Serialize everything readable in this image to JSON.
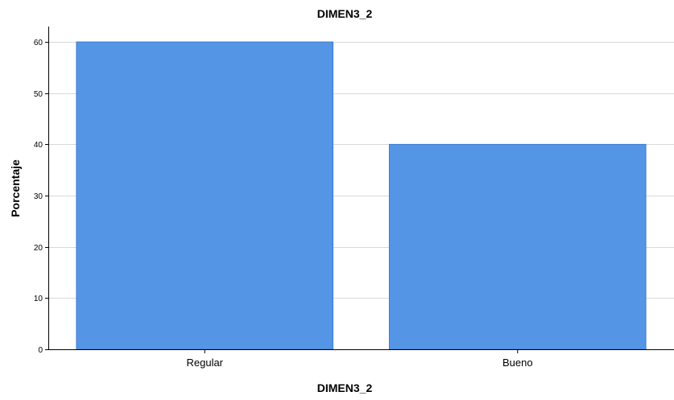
{
  "chart_data": {
    "type": "bar",
    "title": "DIMEN3_2",
    "xlabel": "DIMEN3_2",
    "ylabel": "Porcentaje",
    "categories": [
      "Regular",
      "Bueno"
    ],
    "values": [
      60,
      40
    ],
    "ylim": [
      0,
      63
    ],
    "yticks": [
      0,
      10,
      20,
      30,
      40,
      50,
      60
    ],
    "grid": true,
    "legend": "none",
    "colors": {
      "bar": "#5595e5",
      "gridline": "#d9d9d9",
      "axis": "#000000"
    }
  }
}
